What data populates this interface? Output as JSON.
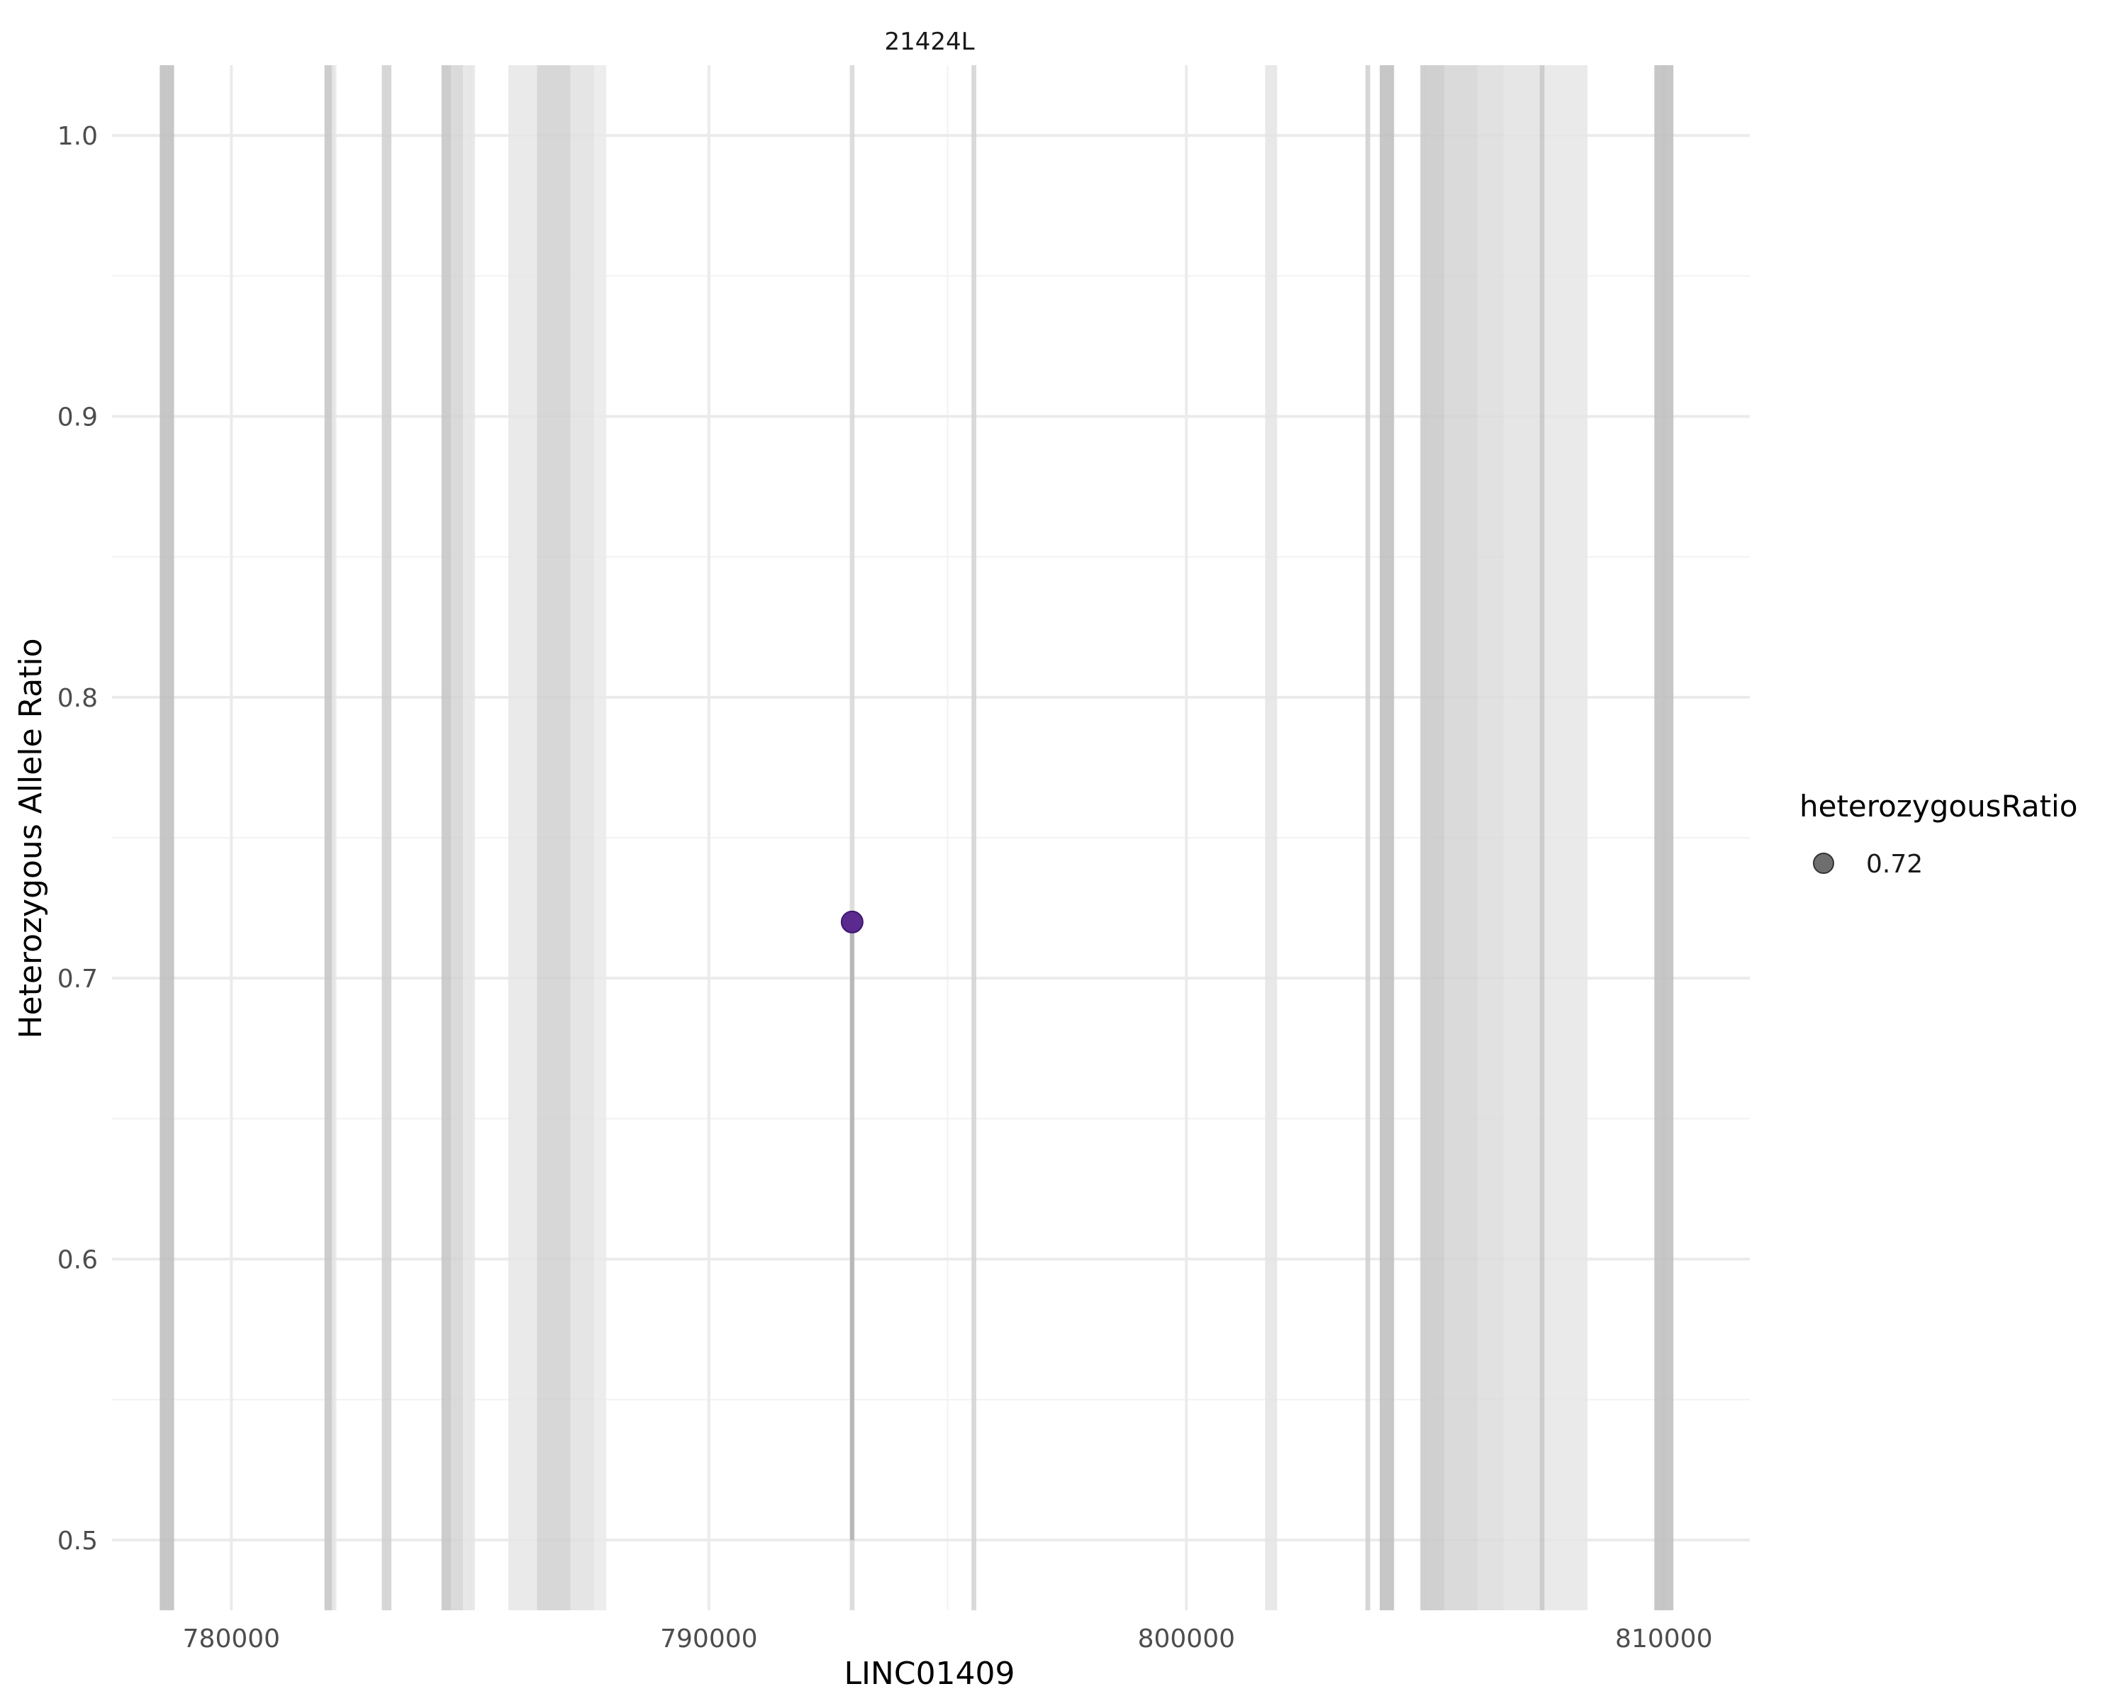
{
  "chart_data": {
    "type": "scatter",
    "title": "21424L",
    "xlabel": "LINC01409",
    "ylabel": "Heterozygous Allele Ratio",
    "xlim": [
      777500,
      811800
    ],
    "ylim": [
      0.475,
      1.025
    ],
    "x_ticks": [
      780000,
      790000,
      800000,
      810000
    ],
    "x_tick_labels": [
      "780000",
      "790000",
      "800000",
      "810000"
    ],
    "y_ticks": [
      0.5,
      0.6,
      0.7,
      0.8,
      0.9,
      1.0
    ],
    "y_tick_labels": [
      "0.5",
      "0.6",
      "0.7",
      "0.8",
      "0.9",
      "1.0"
    ],
    "grid": true,
    "points": [
      {
        "x": 793000,
        "y": 0.72,
        "color": "#5b2a8e"
      }
    ],
    "stem": {
      "x": 793000,
      "y_from": 0.5,
      "y_to": 0.72
    },
    "region_bands": [
      {
        "x0": 778500,
        "x1": 778800,
        "shade": "#bdbdbd"
      },
      {
        "x0": 781950,
        "x1": 782150,
        "shade": "#c4c4c4"
      },
      {
        "x0": 782100,
        "x1": 782200,
        "shade": "#e6e6e6"
      },
      {
        "x0": 783150,
        "x1": 783350,
        "shade": "#cfcfcf"
      },
      {
        "x0": 784400,
        "x1": 784600,
        "shade": "#c4c4c4"
      },
      {
        "x0": 784600,
        "x1": 784850,
        "shade": "#d4d4d4"
      },
      {
        "x0": 784850,
        "x1": 785100,
        "shade": "#e4e4e4"
      },
      {
        "x0": 785800,
        "x1": 786400,
        "shade": "#e6e6e6"
      },
      {
        "x0": 786400,
        "x1": 787100,
        "shade": "#d0d0d0"
      },
      {
        "x0": 787100,
        "x1": 787600,
        "shade": "#e0e0e0"
      },
      {
        "x0": 787600,
        "x1": 787850,
        "shade": "#eaeaea"
      },
      {
        "x0": 792950,
        "x1": 793050,
        "shade": "#d7d7d7"
      },
      {
        "x0": 795500,
        "x1": 795600,
        "shade": "#d2d2d2"
      },
      {
        "x0": 801650,
        "x1": 801900,
        "shade": "#e4e4e4"
      },
      {
        "x0": 803750,
        "x1": 803850,
        "shade": "#cfcfcf"
      },
      {
        "x0": 804050,
        "x1": 804350,
        "shade": "#bdbdbd"
      },
      {
        "x0": 804900,
        "x1": 805400,
        "shade": "#c8c8c8"
      },
      {
        "x0": 805400,
        "x1": 806100,
        "shade": "#d4d4d4"
      },
      {
        "x0": 806100,
        "x1": 806650,
        "shade": "#dcdcdc"
      },
      {
        "x0": 806650,
        "x1": 807400,
        "shade": "#e2e2e2"
      },
      {
        "x0": 807400,
        "x1": 807500,
        "shade": "#c4c4c4"
      },
      {
        "x0": 807500,
        "x1": 808400,
        "shade": "#e6e6e6"
      },
      {
        "x0": 809800,
        "x1": 810200,
        "shade": "#bdbdbd"
      }
    ],
    "legend": {
      "title": "heterozygousRatio",
      "entries": [
        {
          "label": "0.72",
          "color": "#555555"
        }
      ],
      "placement": "right"
    }
  }
}
